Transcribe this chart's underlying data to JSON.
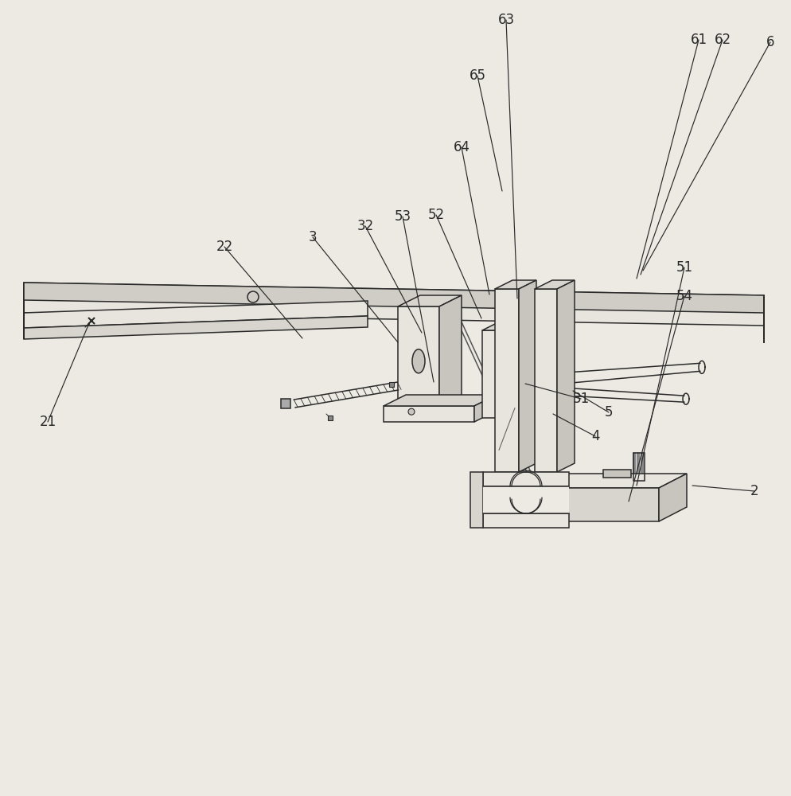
{
  "bg_color": "#edeae4",
  "line_color": "#2a2a2a",
  "line_width": 1.1,
  "face_light": "#e8e5df",
  "face_mid": "#d8d5cf",
  "face_dark": "#c8c5bf",
  "face_side": "#d0cdc7"
}
